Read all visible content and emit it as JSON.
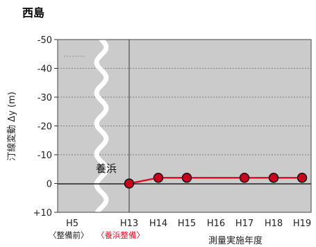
{
  "chart_data": {
    "type": "line",
    "title": "西島",
    "ylabel": "汀線変動 Δy (m)",
    "xlabel": "測量実施年度",
    "categories": [
      "H5",
      "H13",
      "H14",
      "H15",
      "H16",
      "H17",
      "H18",
      "H19"
    ],
    "category_colors": [
      "#222222",
      "#e0102a",
      "#222222",
      "#222222",
      "#222222",
      "#222222",
      "#222222",
      "#222222"
    ],
    "y_ticks": [
      "-50",
      "-40",
      "-30",
      "-20",
      "-10",
      "0",
      "+10"
    ],
    "ylim": [
      -50,
      10
    ],
    "y_inverted": true,
    "grid": "horizontal-dashed",
    "series": [
      {
        "points": [
          {
            "x": "H13",
            "y": 0
          },
          {
            "x": "H14",
            "y": -2
          },
          {
            "x": "H15",
            "y": -2
          },
          {
            "x": "H17",
            "y": -2
          },
          {
            "x": "H18",
            "y": -2
          },
          {
            "x": "H19",
            "y": -2
          }
        ],
        "color": "#e0102a",
        "marker_color": "#c8001e"
      }
    ],
    "annotations": {
      "nourishment_label": "養浜",
      "before_note": "〈整備前〉",
      "after_note": "〈養浜整備〉",
      "after_note_color": "#e0102a"
    },
    "colors": {
      "plot_bg": "#cbcbcb",
      "line": "#e0102a",
      "marker": "#c8001e"
    }
  }
}
